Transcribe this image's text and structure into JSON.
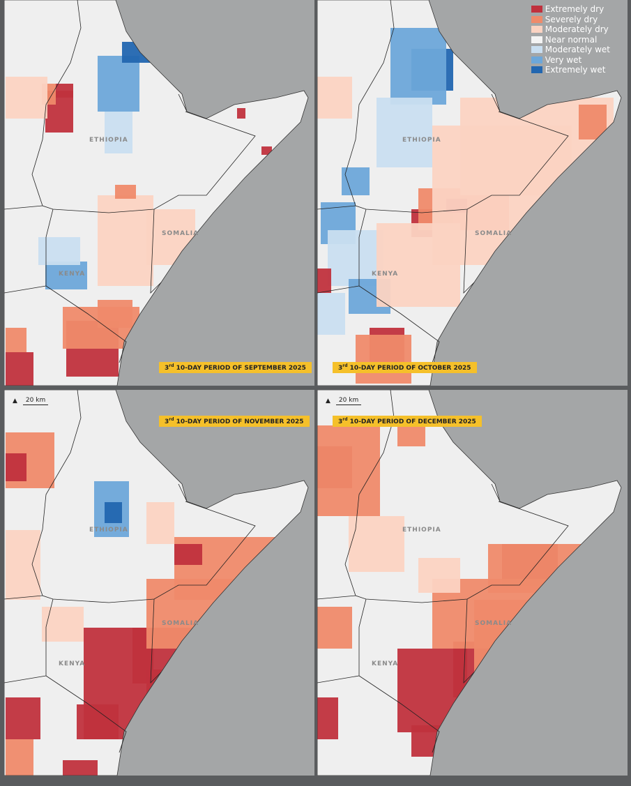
{
  "legend": {
    "items": [
      {
        "label": "Extremely dry",
        "color": "#c0313d"
      },
      {
        "label": "Severely dry",
        "color": "#ef8a6a"
      },
      {
        "label": "Moderately dry",
        "color": "#fbd3c2"
      },
      {
        "label": "Near normal",
        "color": "#f4f4f4"
      },
      {
        "label": "Moderately wet",
        "color": "#c9def0"
      },
      {
        "label": "Very wet",
        "color": "#6da7d9"
      },
      {
        "label": "Extremely wet",
        "color": "#2266b0"
      }
    ]
  },
  "countries": {
    "ethiopia": "ETHIOPIA",
    "somalia": "SOMALIA",
    "kenya": "KENYA"
  },
  "scale": {
    "label": "20 km",
    "north_icon": "north-arrow-icon"
  },
  "panels": [
    {
      "ordinal": "3",
      "suffix": "rd",
      "title": " 10-DAY PERIOD OF SEPTEMBER 2025"
    },
    {
      "ordinal": "3",
      "suffix": "rd",
      "title": " 10-DAY PERIOD OF OCTOBER 2025"
    },
    {
      "ordinal": "3",
      "suffix": "rd",
      "title": " 10-DAY PERIOD OF NOVEMBER 2025"
    },
    {
      "ordinal": "3",
      "suffix": "rd",
      "title": " 10-DAY PERIOD OF DECEMBER 2025"
    }
  ]
}
